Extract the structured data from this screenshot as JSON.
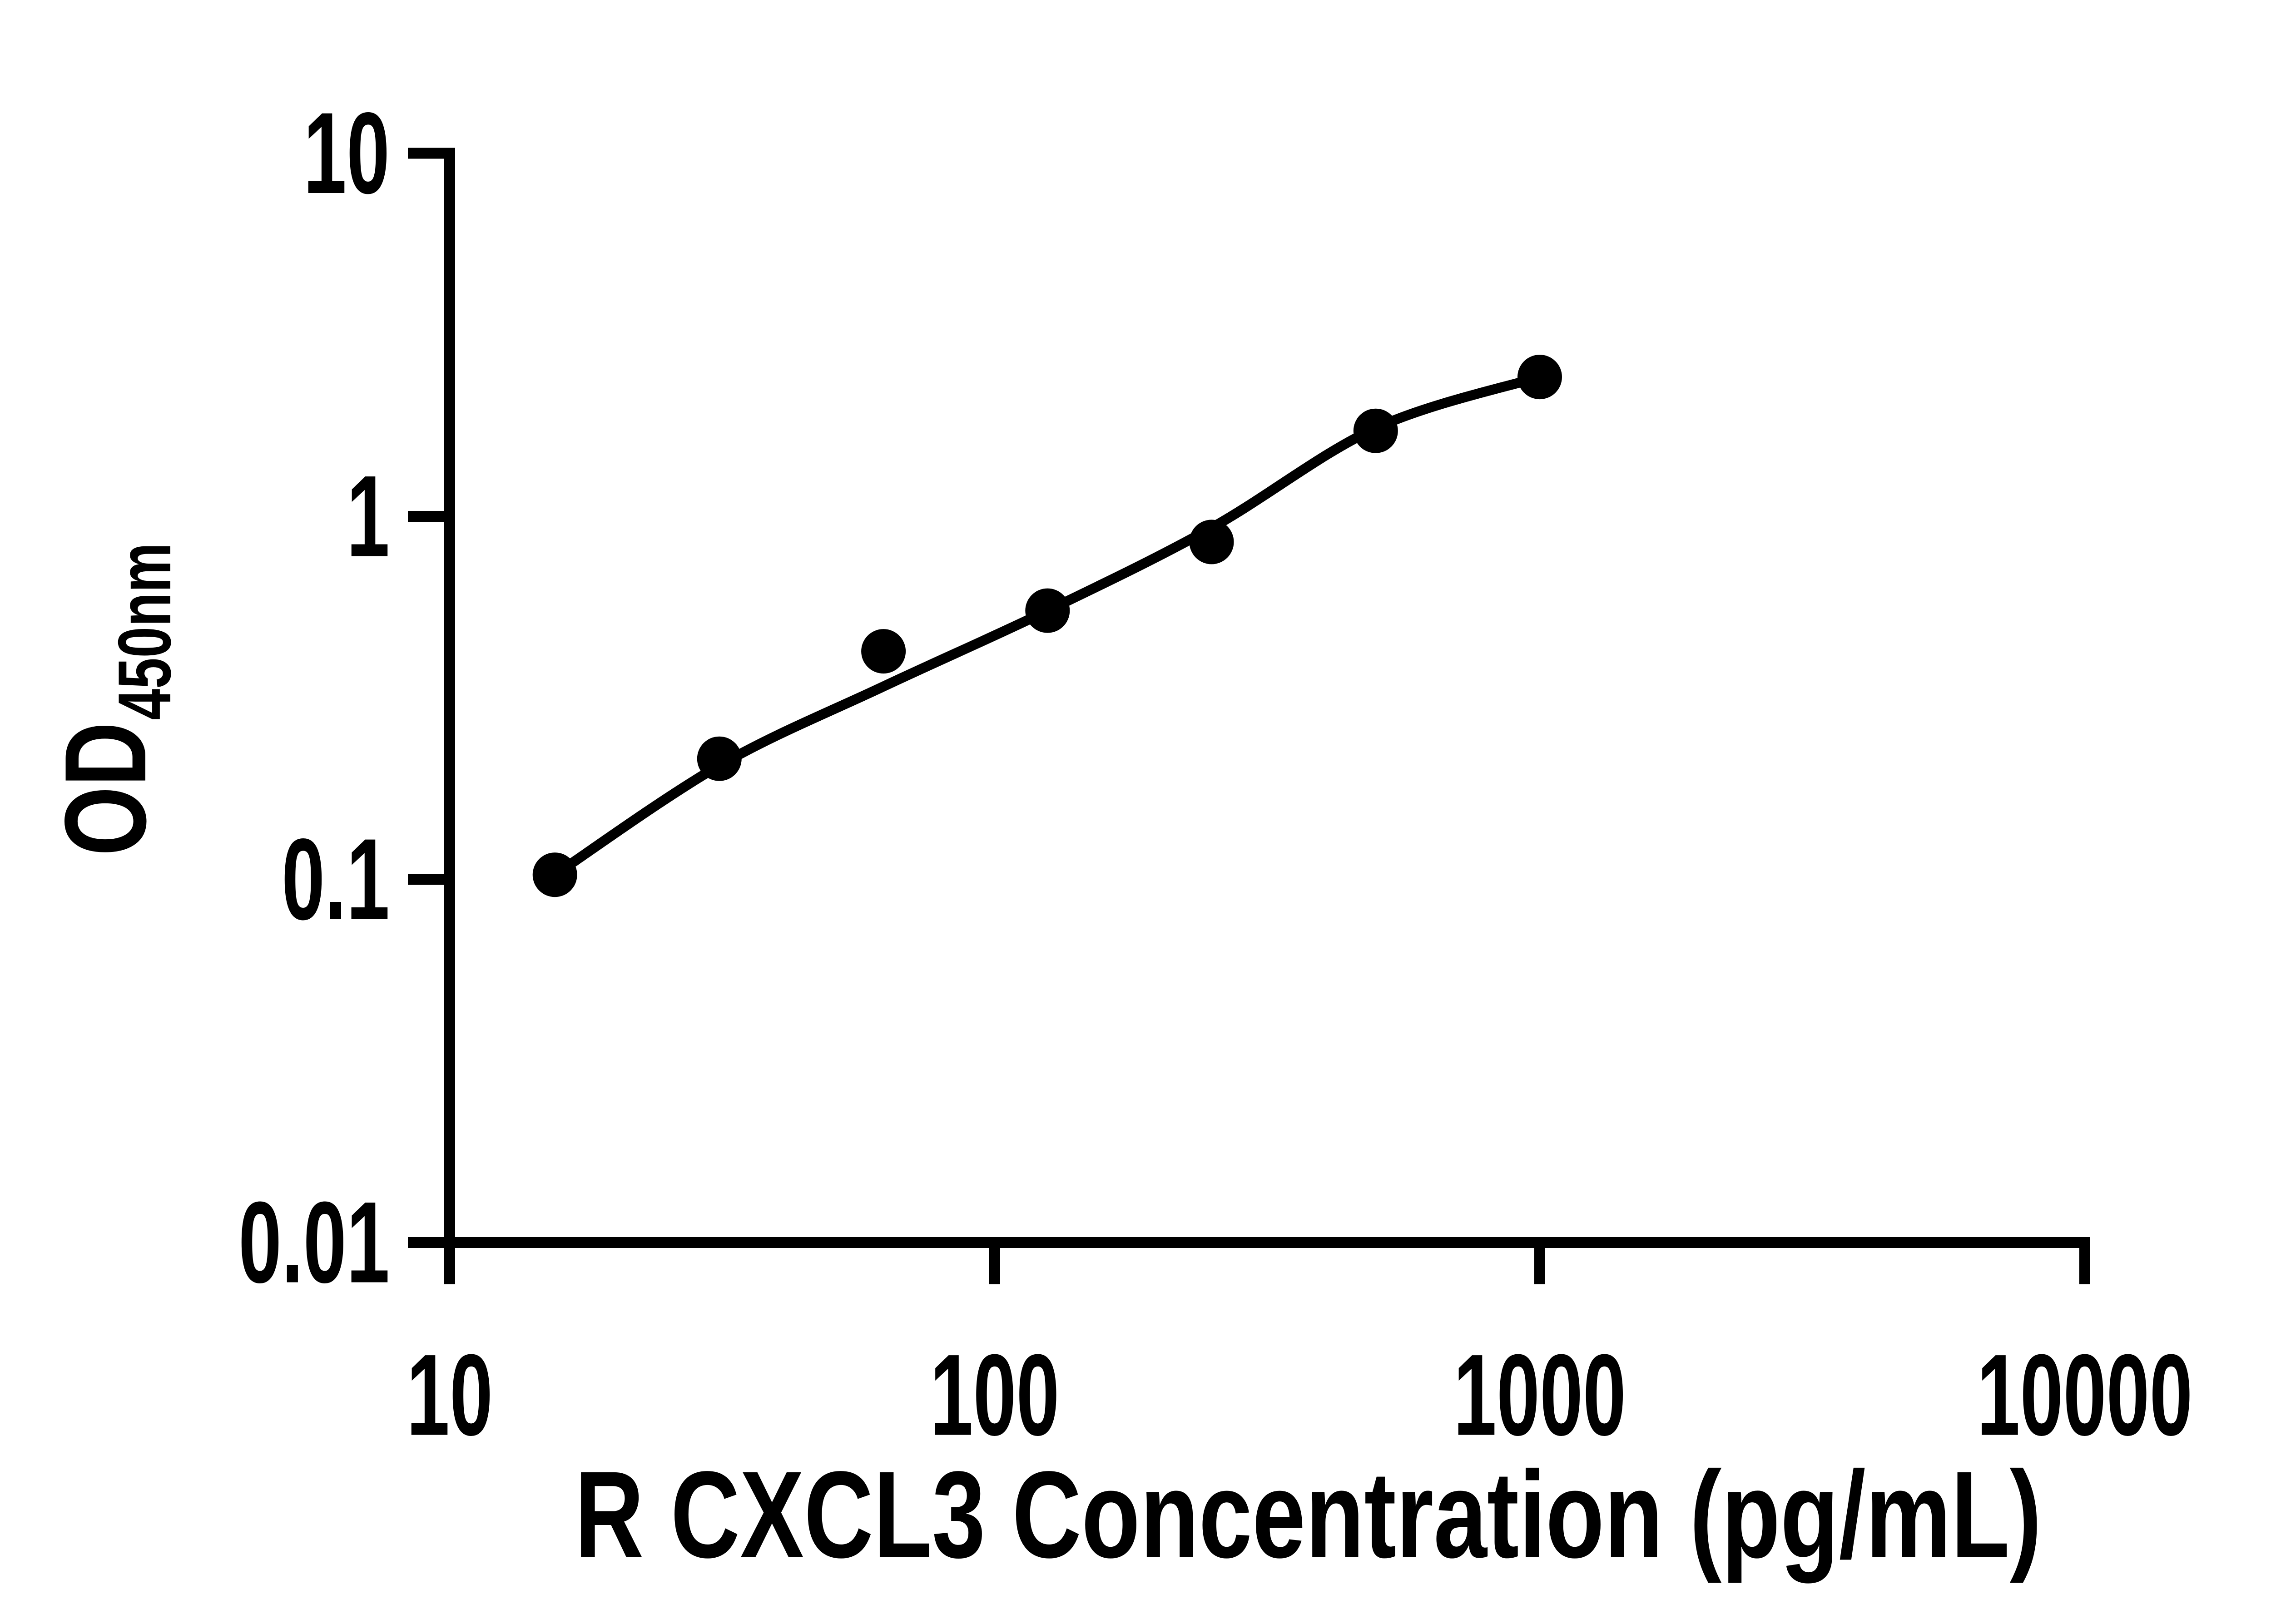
{
  "colors": {
    "ink": "#000000",
    "background": "#ffffff"
  },
  "chart_data": {
    "type": "scatter",
    "title": "",
    "x_scale": "log10",
    "y_scale": "log10",
    "xlim": [
      10,
      10000
    ],
    "ylim": [
      0.01,
      10
    ],
    "grid": false,
    "legend": false,
    "xlabel": "R CXCL3 Concentration (pg/mL)",
    "ylabel": {
      "main": "OD",
      "subscript": "450nm"
    },
    "x_ticks": [
      {
        "value": 10,
        "label": "10"
      },
      {
        "value": 100,
        "label": "100"
      },
      {
        "value": 1000,
        "label": "1000"
      },
      {
        "value": 10000,
        "label": "10000"
      }
    ],
    "y_ticks": [
      {
        "value": 10,
        "label": "10"
      },
      {
        "value": 1,
        "label": "1"
      },
      {
        "value": 0.1,
        "label": "0.1"
      },
      {
        "value": 0.01,
        "label": "0.01"
      }
    ],
    "series": [
      {
        "marker": "filled-circle",
        "color": "#000000",
        "points": [
          {
            "x": 15.6,
            "y": 0.103
          },
          {
            "x": 31.25,
            "y": 0.215
          },
          {
            "x": 62.5,
            "y": 0.425
          },
          {
            "x": 125,
            "y": 0.55
          },
          {
            "x": 250,
            "y": 0.85
          },
          {
            "x": 500,
            "y": 1.72
          },
          {
            "x": 1000,
            "y": 2.42
          }
        ],
        "fit_curve_points": [
          {
            "x": 15.6,
            "y": 0.103
          },
          {
            "x": 31.25,
            "y": 0.206
          },
          {
            "x": 62.5,
            "y": 0.34
          },
          {
            "x": 125,
            "y": 0.55
          },
          {
            "x": 250,
            "y": 0.93
          },
          {
            "x": 500,
            "y": 1.75
          },
          {
            "x": 1000,
            "y": 2.42
          }
        ]
      }
    ]
  }
}
